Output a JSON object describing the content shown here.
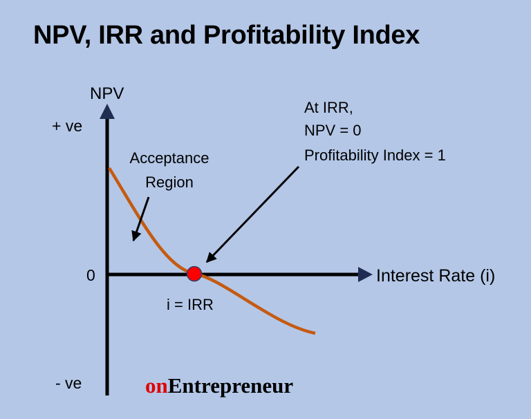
{
  "title": "NPV, IRR and Profitability Index",
  "labels": {
    "y_axis": "NPV",
    "x_axis": "Interest Rate (i)",
    "plus": "+ ve",
    "zero": "0",
    "minus": "- ve",
    "acceptance_line1": "Acceptance",
    "acceptance_line2": "Region",
    "irr_point": "i = IRR",
    "callout_line1": "At IRR,",
    "callout_line2": "NPV = 0",
    "callout_line3": "Profitability Index = 1"
  },
  "brand": {
    "prefix": "on",
    "name": "Entrepreneur"
  },
  "colors": {
    "background": "#b4c7e7",
    "curve": "#c55a11",
    "irr_dot": "#ff0000",
    "axis_arrowhead": "#1f2d52",
    "brand_prefix": "#e00000"
  }
}
